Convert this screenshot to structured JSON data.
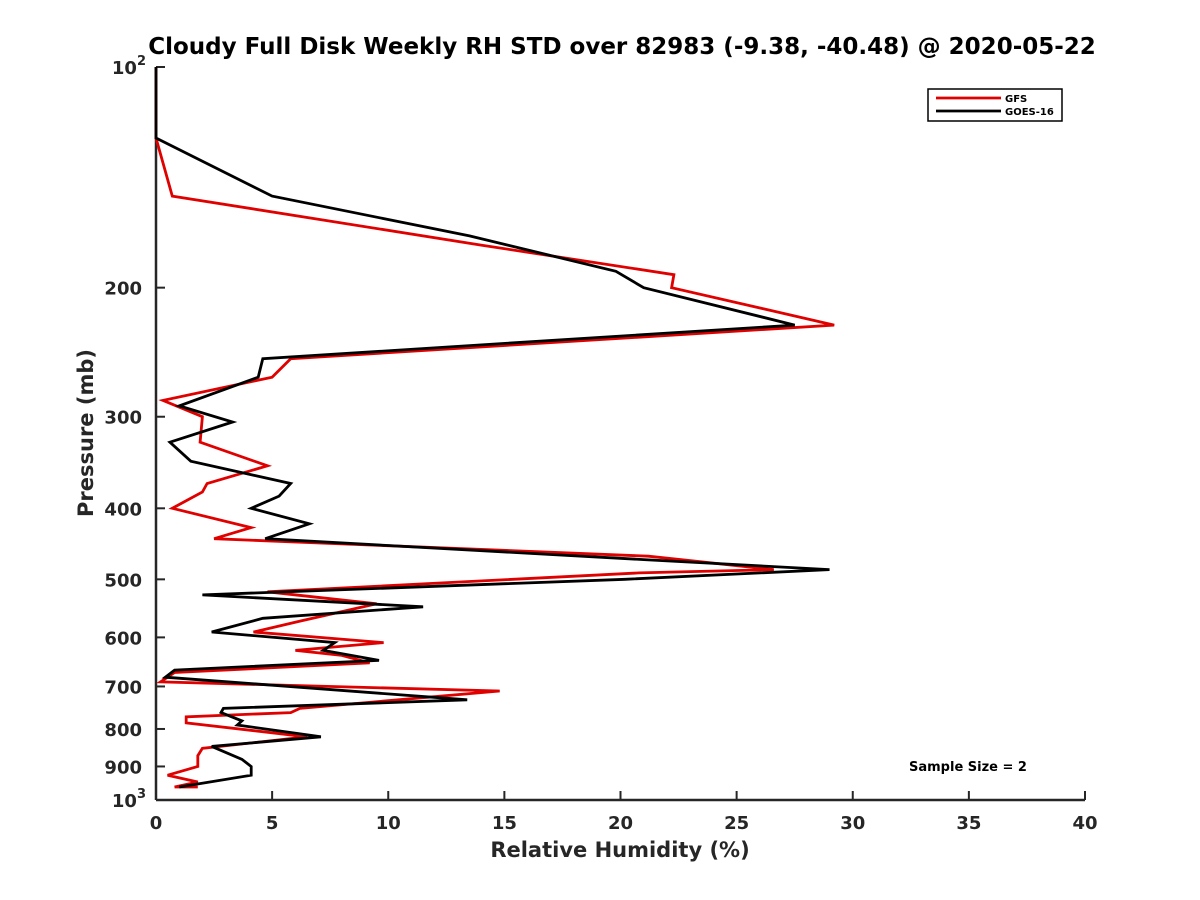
{
  "chart_data": {
    "type": "line",
    "title": "Cloudy Full Disk Weekly RH STD over 82983 (-9.38, -40.48) @ 2020-05-22",
    "xlabel": "Relative Humidity (%)",
    "ylabel": "Pressure (mb)",
    "xlim": [
      0,
      40
    ],
    "ylim": [
      100,
      1000
    ],
    "y_scale": "log",
    "y_reversed": true,
    "grid": false,
    "legend_position": "top-right",
    "x_ticks": [
      0,
      5,
      10,
      15,
      20,
      25,
      30,
      35,
      40
    ],
    "y_ticks": [
      {
        "value": 100,
        "base": "10",
        "exp": "2"
      },
      {
        "value": 200,
        "label": "200"
      },
      {
        "value": 300,
        "label": "300"
      },
      {
        "value": 400,
        "label": "400"
      },
      {
        "value": 500,
        "label": "500"
      },
      {
        "value": 600,
        "label": "600"
      },
      {
        "value": 700,
        "label": "700"
      },
      {
        "value": 800,
        "label": "800"
      },
      {
        "value": 900,
        "label": "900"
      },
      {
        "value": 1000,
        "base": "10",
        "exp": "3"
      }
    ],
    "annotation": "Sample Size = 2",
    "series": [
      {
        "name": "GFS",
        "color": "#e00000",
        "points": [
          [
            0,
            100
          ],
          [
            0,
            125
          ],
          [
            0.7,
            150
          ],
          [
            14,
            175
          ],
          [
            22.3,
            192
          ],
          [
            22.2,
            200
          ],
          [
            29.2,
            225
          ],
          [
            5.8,
            250
          ],
          [
            5,
            265
          ],
          [
            0.3,
            285
          ],
          [
            2,
            300
          ],
          [
            1.9,
            325
          ],
          [
            4.8,
            350
          ],
          [
            2.2,
            370
          ],
          [
            2,
            380
          ],
          [
            0.7,
            400
          ],
          [
            4.1,
            425
          ],
          [
            2.5,
            440
          ],
          [
            21.2,
            465
          ],
          [
            26.6,
            485
          ],
          [
            20.8,
            490
          ],
          [
            4.8,
            520
          ],
          [
            9.5,
            540
          ],
          [
            6.2,
            570
          ],
          [
            4.2,
            590
          ],
          [
            9.8,
            610
          ],
          [
            6,
            625
          ],
          [
            8,
            635
          ],
          [
            9.2,
            650
          ],
          [
            0.8,
            670
          ],
          [
            0.2,
            690
          ],
          [
            14.8,
            710
          ],
          [
            6.2,
            750
          ],
          [
            5.8,
            760
          ],
          [
            1.3,
            770
          ],
          [
            1.3,
            785
          ],
          [
            6.5,
            820
          ],
          [
            2,
            850
          ],
          [
            1.8,
            870
          ],
          [
            1.8,
            900
          ],
          [
            0.5,
            925
          ],
          [
            1.8,
            945
          ],
          [
            0.8,
            960
          ],
          [
            1.8,
            960
          ]
        ]
      },
      {
        "name": "GOES-16",
        "color": "#000000",
        "points": [
          [
            0,
            100
          ],
          [
            0,
            125
          ],
          [
            5,
            150
          ],
          [
            13.5,
            170
          ],
          [
            19.8,
            190
          ],
          [
            21,
            200
          ],
          [
            27.5,
            225
          ],
          [
            4.6,
            250
          ],
          [
            4.4,
            265
          ],
          [
            1,
            290
          ],
          [
            3.3,
            305
          ],
          [
            0.6,
            325
          ],
          [
            1.5,
            345
          ],
          [
            5.8,
            370
          ],
          [
            5.3,
            385
          ],
          [
            4.1,
            400
          ],
          [
            6.6,
            420
          ],
          [
            4.7,
            440
          ],
          [
            21,
            470
          ],
          [
            29,
            485
          ],
          [
            20.2,
            500
          ],
          [
            2,
            525
          ],
          [
            11.5,
            545
          ],
          [
            4.6,
            565
          ],
          [
            2.4,
            590
          ],
          [
            7.7,
            610
          ],
          [
            7.2,
            625
          ],
          [
            9.6,
            645
          ],
          [
            0.8,
            665
          ],
          [
            0.4,
            680
          ],
          [
            13.4,
            730
          ],
          [
            2.9,
            750
          ],
          [
            2.8,
            760
          ],
          [
            3.7,
            780
          ],
          [
            3.5,
            790
          ],
          [
            7.1,
            820
          ],
          [
            2.4,
            845
          ],
          [
            3.7,
            880
          ],
          [
            4.1,
            900
          ],
          [
            4.1,
            925
          ],
          [
            1,
            960
          ]
        ]
      }
    ]
  }
}
